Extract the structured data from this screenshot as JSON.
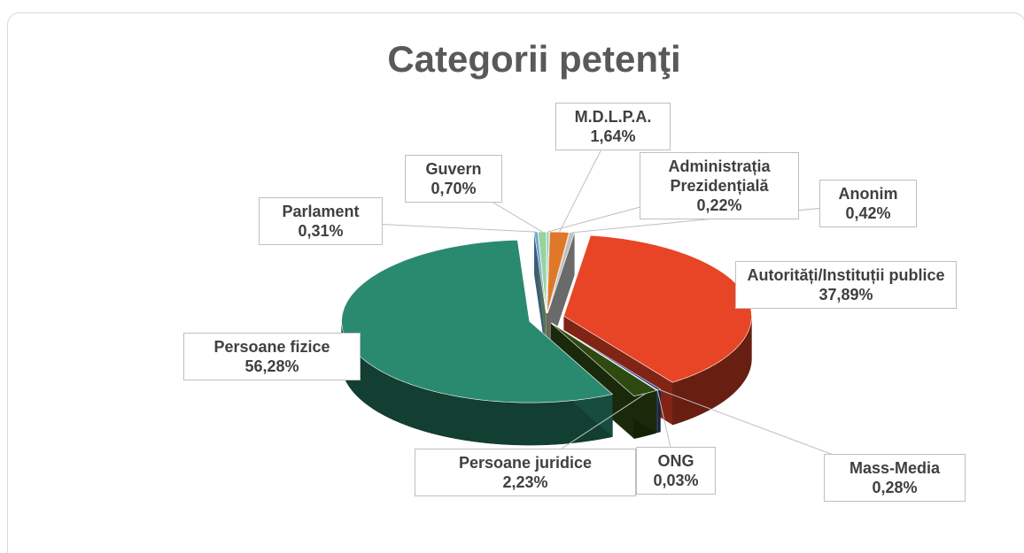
{
  "chart_data": {
    "type": "pie",
    "title": "Categorii petenţi",
    "categories": [
      "Administrația Prezidențială",
      "M.D.L.P.A.",
      "Anonim",
      "Autorități/Instituții publice",
      "Mass-Media",
      "ONG",
      "Persoane juridice",
      "Persoane fizice",
      "Parlament",
      "Guvern"
    ],
    "values": [
      0.22,
      1.64,
      0.42,
      37.89,
      0.28,
      0.03,
      2.23,
      56.28,
      0.31,
      0.7
    ],
    "value_labels": [
      "0,22%",
      "1,64%",
      "0,42%",
      "37,89%",
      "0,28%",
      "0,03%",
      "2,23%",
      "56,28%",
      "0,31%",
      "0,70%"
    ],
    "colors": [
      "#8fd3c7",
      "#e0782a",
      "#c0c0c0",
      "#e84426",
      "#2c3e8c",
      "#7fb2e0",
      "#2f4a10",
      "#2a8a70",
      "#6fa8dc",
      "#9ad29a"
    ]
  }
}
